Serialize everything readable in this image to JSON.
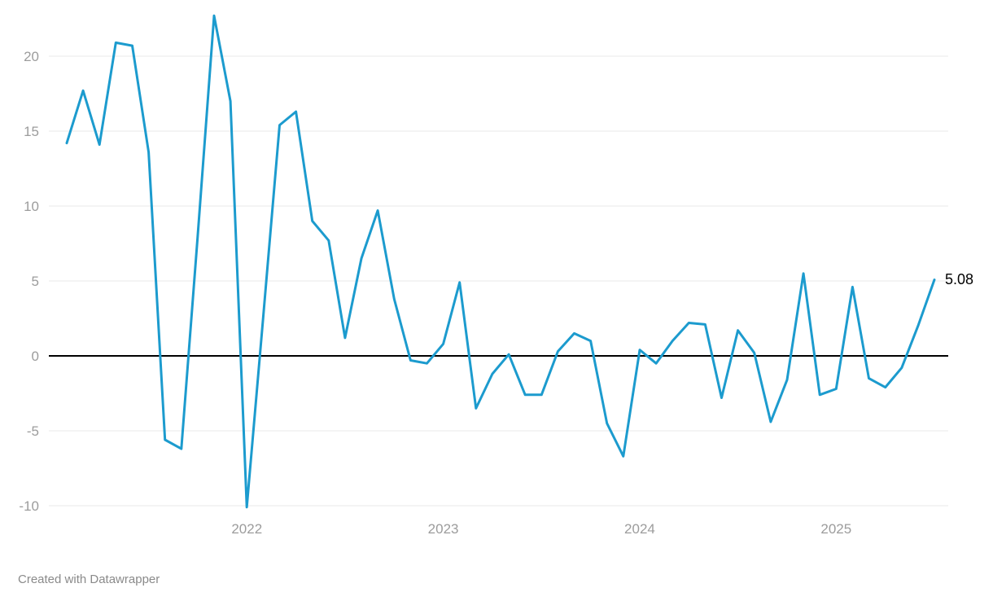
{
  "chart_data": {
    "type": "line",
    "title": "",
    "xlabel": "",
    "ylabel": "",
    "x": [
      "2021-02",
      "2021-03",
      "2021-04",
      "2021-05",
      "2021-06",
      "2021-07",
      "2021-08",
      "2021-09",
      "2021-10",
      "2021-11",
      "2021-12",
      "2022-01",
      "2022-02",
      "2022-03",
      "2022-04",
      "2022-05",
      "2022-06",
      "2022-07",
      "2022-08",
      "2022-09",
      "2022-10",
      "2022-11",
      "2022-12",
      "2023-01",
      "2023-02",
      "2023-03",
      "2023-04",
      "2023-05",
      "2023-06",
      "2023-07",
      "2023-08",
      "2023-09",
      "2023-10",
      "2023-11",
      "2023-12",
      "2024-01",
      "2024-02",
      "2024-03",
      "2024-04",
      "2024-05",
      "2024-06",
      "2024-07",
      "2024-08",
      "2024-09",
      "2024-10",
      "2024-11",
      "2024-12",
      "2025-01",
      "2025-02",
      "2025-03",
      "2025-04",
      "2025-05",
      "2025-06",
      "2025-07"
    ],
    "values": [
      14.2,
      17.7,
      14.1,
      20.9,
      20.7,
      13.6,
      -5.6,
      -6.2,
      8.0,
      22.7,
      17.0,
      -10.1,
      2.6,
      15.4,
      16.3,
      9.0,
      7.7,
      1.2,
      6.5,
      9.7,
      3.8,
      -0.3,
      -0.5,
      0.8,
      4.9,
      -3.5,
      -1.2,
      0.1,
      -2.6,
      -2.6,
      0.3,
      1.5,
      1.0,
      -4.5,
      -6.7,
      0.4,
      -0.5,
      1.0,
      2.2,
      2.1,
      -2.8,
      1.7,
      0.2,
      -4.4,
      -1.6,
      5.5,
      -2.6,
      -2.2,
      4.6,
      -1.5,
      -2.1,
      -0.8,
      2.0,
      5.08
    ],
    "y_ticks": [
      -10,
      -5,
      0,
      5,
      10,
      15,
      20
    ],
    "y_tick_labels": [
      "-10",
      "-5",
      "0",
      "5",
      "10",
      "15",
      "20"
    ],
    "x_tick_labels": [
      "2022",
      "2023",
      "2024",
      "2025"
    ],
    "x_tick_months": [
      "2022-01",
      "2023-01",
      "2024-01",
      "2025-01"
    ],
    "ylim": [
      -10.5,
      23.2
    ],
    "grid": true,
    "legend": "none",
    "end_label": "5.08",
    "line_color": "#1c9bce",
    "grid_color": "#e8e8e8",
    "zero_line_color": "#000000",
    "tick_label_color": "#9c9c9c"
  },
  "footer": {
    "attribution": "Created with Datawrapper"
  }
}
